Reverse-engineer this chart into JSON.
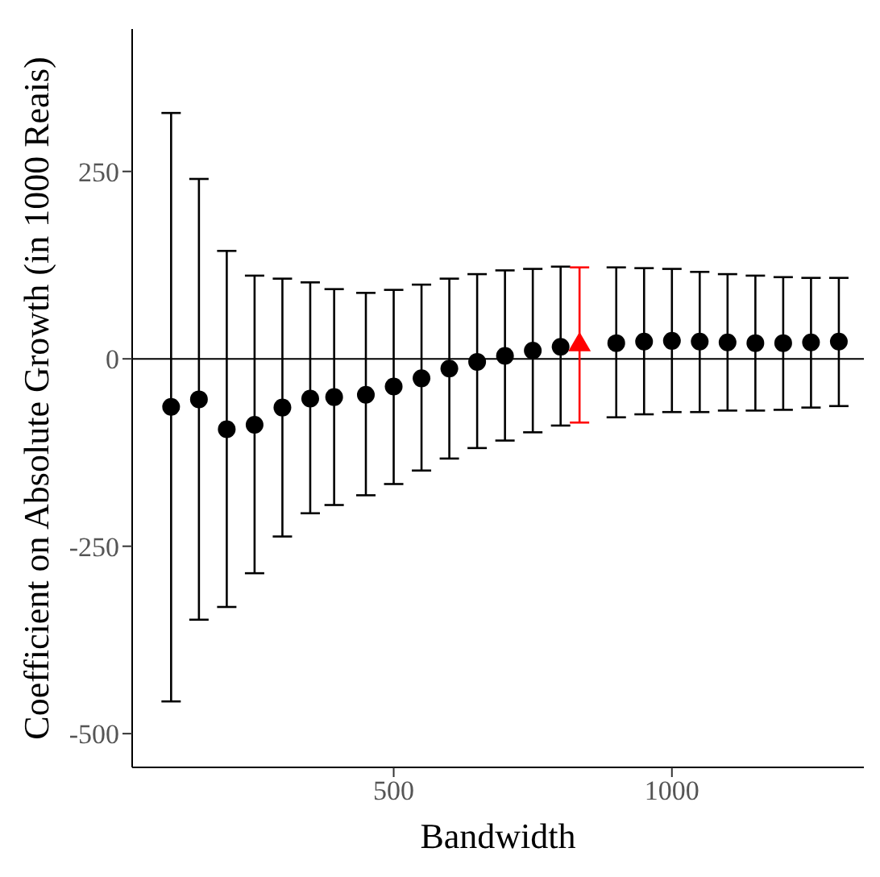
{
  "chart_data": {
    "type": "scatter",
    "xlabel": "Bandwidth",
    "ylabel": "Coefficient on Absolute Growth (in 1000 Reais)",
    "xlim": [
      30,
      1345
    ],
    "ylim": [
      -545,
      440
    ],
    "xticks": [
      500,
      1000
    ],
    "yticks": [
      -500,
      -250,
      0,
      250
    ],
    "grid": false,
    "legend": false,
    "ref_lines": [
      {
        "axis": "y",
        "value": 0,
        "color": "#000000",
        "line_style": "solid"
      }
    ],
    "series": [
      {
        "color": "#000000",
        "marker": "circle",
        "x": [
          100,
          150,
          200,
          250,
          300,
          350,
          393,
          450,
          500,
          550,
          600,
          650,
          700,
          750,
          800,
          900,
          950,
          1000,
          1050,
          1100,
          1150,
          1200,
          1250,
          1300
        ],
        "values": [
          -64,
          -54,
          -94,
          -88,
          -65,
          -53,
          -51,
          -48,
          -37,
          -26,
          -13,
          -4,
          4,
          11,
          16,
          21,
          23,
          24,
          23,
          22,
          21,
          21,
          22,
          23
        ],
        "errors": [
          [
            -457,
            328
          ],
          [
            -348,
            240
          ],
          [
            -331,
            144
          ],
          [
            -286,
            111
          ],
          [
            -237,
            107
          ],
          [
            -206,
            102
          ],
          [
            -195,
            93
          ],
          [
            -182,
            88
          ],
          [
            -167,
            92
          ],
          [
            -149,
            99
          ],
          [
            -133,
            107
          ],
          [
            -119,
            113
          ],
          [
            -109,
            118
          ],
          [
            -98,
            120
          ],
          [
            -89,
            123
          ],
          [
            -78,
            122
          ],
          [
            -74,
            121
          ],
          [
            -71,
            120
          ],
          [
            -71,
            116
          ],
          [
            -69,
            113
          ],
          [
            -69,
            111
          ],
          [
            -68,
            109
          ],
          [
            -65,
            108
          ],
          [
            -63,
            108
          ]
        ]
      },
      {
        "color": "#ff0000",
        "marker": "triangle",
        "x": [
          834
        ],
        "values": [
          21
        ],
        "errors": [
          [
            -85,
            122
          ]
        ]
      }
    ]
  }
}
